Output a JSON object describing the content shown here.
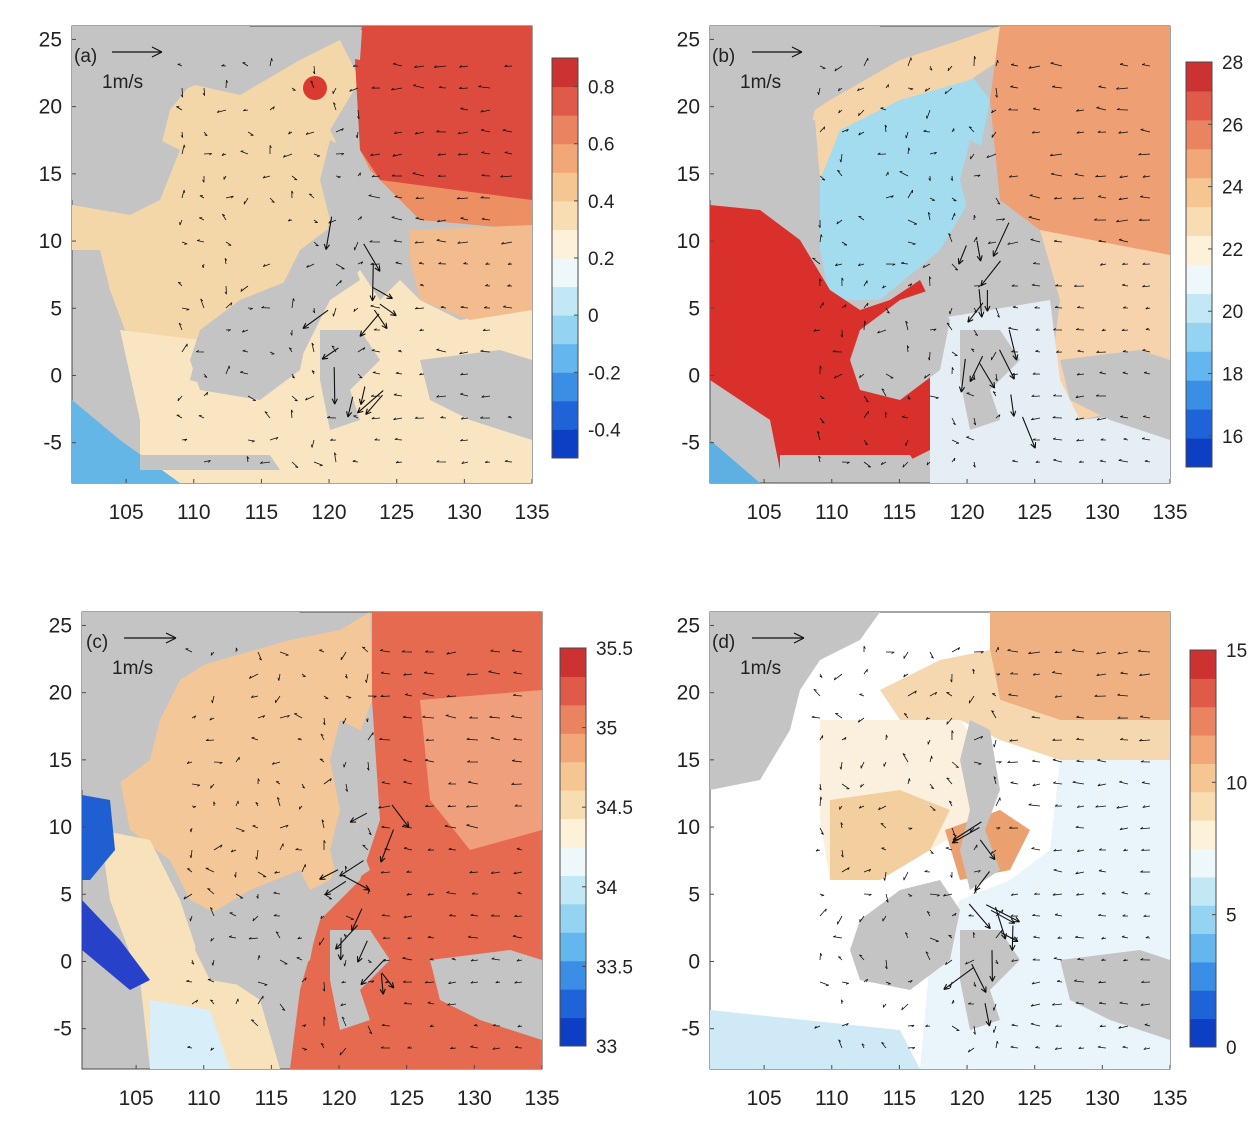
{
  "colors": {
    "land": "#c4c4c4",
    "frame": "#4a4a4a",
    "arrow": "#111111"
  },
  "panels": [
    {
      "id": "a",
      "label": "(a)",
      "scale_label": "1m/s",
      "x_ticks": [
        "105",
        "110",
        "115",
        "120",
        "125",
        "130",
        "135"
      ],
      "y_ticks": [
        "25",
        "20",
        "15",
        "10",
        "5",
        "0",
        "-5"
      ],
      "colorbar_ticks": [
        "0.8",
        "0.6",
        "0.4",
        "0.2",
        "0",
        "-0.2",
        "-0.4"
      ],
      "colorbar_range": [
        -0.5,
        0.9
      ],
      "colorscale": "diverging-blue-red"
    },
    {
      "id": "b",
      "label": "(b)",
      "scale_label": "1m/s",
      "x_ticks": [
        "105",
        "110",
        "115",
        "120",
        "125",
        "130",
        "135"
      ],
      "y_ticks": [
        "25",
        "20",
        "15",
        "10",
        "5",
        "0",
        "-5"
      ],
      "colorbar_ticks": [
        "28",
        "26",
        "24",
        "22",
        "20",
        "18",
        "16"
      ],
      "colorbar_range": [
        15,
        28
      ],
      "colorscale": "diverging-blue-red"
    },
    {
      "id": "c",
      "label": "(c)",
      "scale_label": "1m/s",
      "x_ticks": [
        "105",
        "110",
        "115",
        "120",
        "125",
        "130",
        "135"
      ],
      "y_ticks": [
        "25",
        "20",
        "15",
        "10",
        "5",
        "0",
        "-5"
      ],
      "colorbar_ticks": [
        "35.5",
        "35",
        "34.5",
        "34",
        "33.5",
        "33"
      ],
      "colorbar_range": [
        33,
        35.5
      ],
      "colorscale": "diverging-blue-red"
    },
    {
      "id": "d",
      "label": "(d)",
      "scale_label": "1m/s",
      "x_ticks": [
        "105",
        "110",
        "115",
        "120",
        "125",
        "130",
        "135"
      ],
      "y_ticks": [
        "25",
        "20",
        "15",
        "10",
        "5",
        "0",
        "-5"
      ],
      "colorbar_ticks": [
        "15",
        "10",
        "5",
        "0"
      ],
      "colorbar_range": [
        0,
        15
      ],
      "colorscale": "diverging-blue-red"
    }
  ]
}
